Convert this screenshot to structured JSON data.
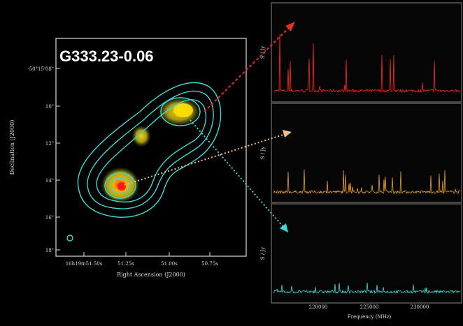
{
  "figure": {
    "title": "G333.23-0.06",
    "map": {
      "x_label": "Right Ascension (J2000)",
      "y_label": "Declination (J2000)",
      "x_ticks": [
        "16h19m51.50s",
        "51.25s",
        "51.00s",
        "50.75s"
      ],
      "y_ticks": [
        "-50°15'08\"",
        "10\"",
        "12\"",
        "14\"",
        "16\"",
        "18\""
      ]
    },
    "spectra": {
      "y_label": "S / Jy",
      "x_label": "Frequency (MHz)",
      "x_ticks": [
        "220000",
        "225000",
        "230000"
      ]
    }
  }
}
